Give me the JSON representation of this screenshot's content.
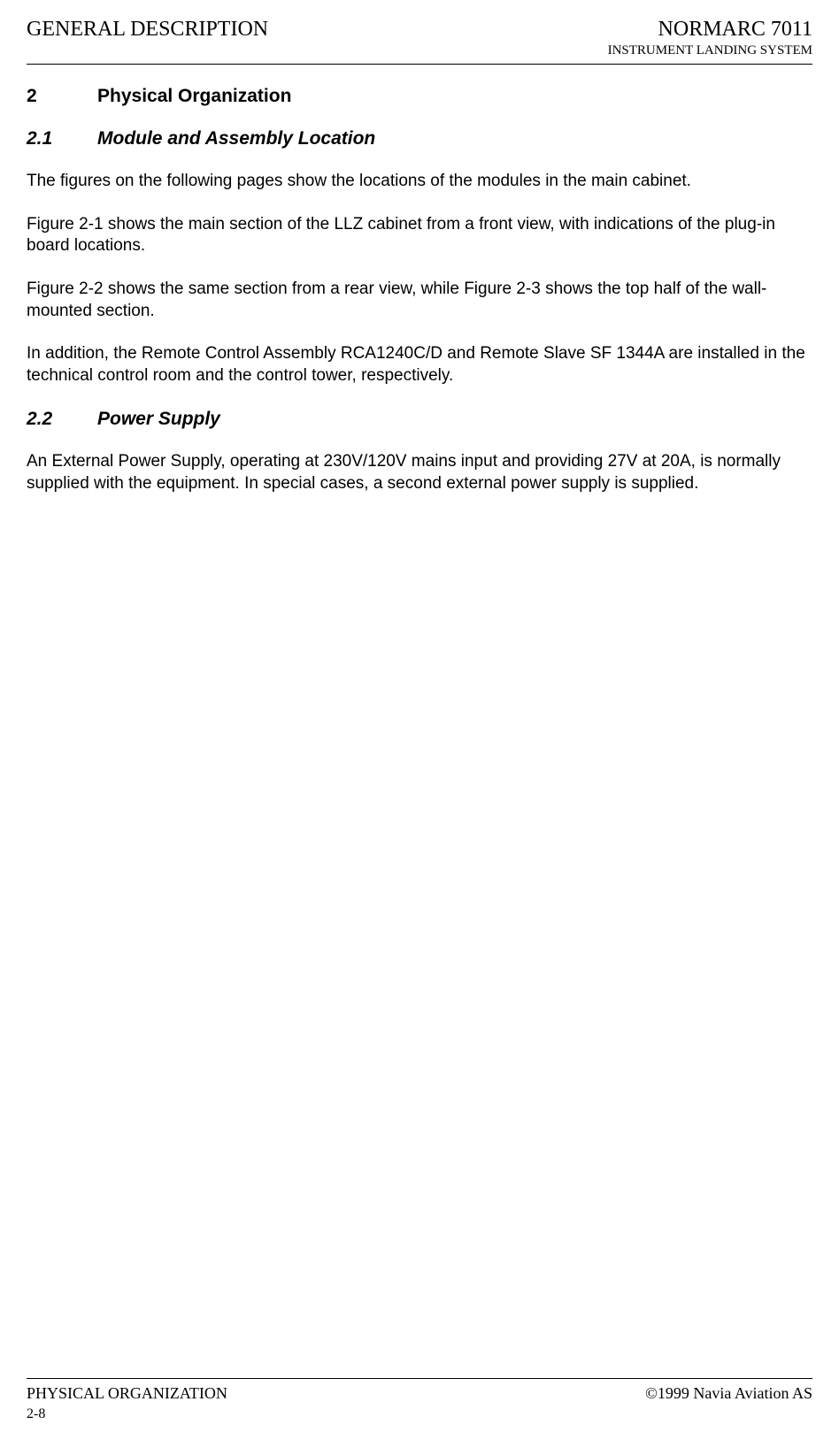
{
  "header": {
    "left": "GENERAL DESCRIPTION",
    "right_top": "NORMARC 7011",
    "right_bottom": "INSTRUMENT LANDING SYSTEM"
  },
  "section": {
    "number": "2",
    "title": "Physical Organization"
  },
  "subsection1": {
    "number": "2.1",
    "title": "Module and Assembly Location"
  },
  "paragraphs1": [
    "The figures on the following pages show the locations of the modules in the main cabinet.",
    "Figure 2-1 shows the main section of the LLZ cabinet from a front view, with indications of the plug-in board locations.",
    "Figure 2-2 shows the same section from a rear view, while Figure 2-3 shows the top half of the wall-mounted section.",
    "In addition, the Remote Control Assembly RCA1240C/D and Remote Slave SF 1344A are installed in the technical control room and the control tower, respectively."
  ],
  "subsection2": {
    "number": "2.2",
    "title": "Power Supply"
  },
  "paragraphs2": [
    "An External Power Supply, operating at 230V/120V mains input and providing 27V at 20A, is normally supplied with the equipment. In special cases, a second external power supply is supplied."
  ],
  "footer": {
    "left": "PHYSICAL ORGANIZATION",
    "right": "©1999 Navia Aviation AS",
    "page": "2-8"
  },
  "colors": {
    "text": "#000000",
    "background": "#ffffff"
  },
  "fonts": {
    "serif": "Times New Roman",
    "sans": "Arial",
    "heading_size": 21,
    "body_size": 19,
    "header_size": 24,
    "header_sub_size": 15,
    "footer_size": 18
  }
}
